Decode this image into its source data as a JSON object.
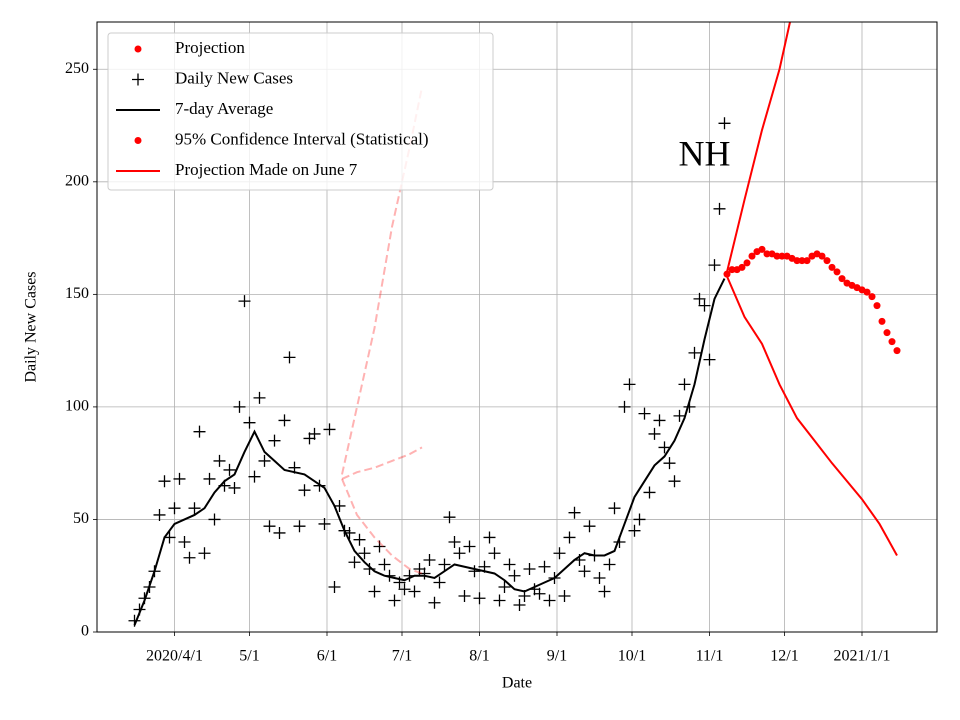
{
  "chart_data": {
    "type": "line",
    "xlabel": "Date",
    "ylabel": "Daily New Cases",
    "xlim": [
      "2020-03-01",
      "2021-01-31"
    ],
    "ylim": [
      0,
      271
    ],
    "xticks": [
      {
        "value": "2020-04-01",
        "label": "2020/4/1"
      },
      {
        "value": "2020-05-01",
        "label": "5/1"
      },
      {
        "value": "2020-06-01",
        "label": "6/1"
      },
      {
        "value": "2020-07-01",
        "label": "7/1"
      },
      {
        "value": "2020-08-01",
        "label": "8/1"
      },
      {
        "value": "2020-09-01",
        "label": "9/1"
      },
      {
        "value": "2020-10-01",
        "label": "10/1"
      },
      {
        "value": "2020-11-01",
        "label": "11/1"
      },
      {
        "value": "2020-12-01",
        "label": "12/1"
      },
      {
        "value": "2021-01-01",
        "label": "2021/1/1"
      }
    ],
    "yticks": [
      0,
      50,
      100,
      150,
      200,
      250
    ],
    "grid": true,
    "legend": "upper left",
    "annotations": [
      {
        "text": "NH",
        "x": "2020-10-30",
        "y": 211
      }
    ],
    "series": [
      {
        "name": "Projection",
        "color": "#ff0000",
        "marker": "dot",
        "x": [
          "2020-11-08",
          "2020-11-10",
          "2020-11-12",
          "2020-11-14",
          "2020-11-16",
          "2020-11-18",
          "2020-11-20",
          "2020-11-22",
          "2020-11-24",
          "2020-11-26",
          "2020-11-28",
          "2020-11-30",
          "2020-12-02",
          "2020-12-04",
          "2020-12-06",
          "2020-12-08",
          "2020-12-10",
          "2020-12-12",
          "2020-12-14",
          "2020-12-16",
          "2020-12-18",
          "2020-12-20",
          "2020-12-22",
          "2020-12-24",
          "2020-12-26",
          "2020-12-28",
          "2020-12-30",
          "2021-01-01",
          "2021-01-03",
          "2021-01-05",
          "2021-01-07",
          "2021-01-09",
          "2021-01-11",
          "2021-01-13",
          "2021-01-15"
        ],
        "values": [
          159,
          161,
          161,
          162,
          164,
          167,
          169,
          170,
          168,
          168,
          167,
          167,
          167,
          166,
          165,
          165,
          165,
          167,
          168,
          167,
          165,
          162,
          160,
          157,
          155,
          154,
          153,
          152,
          151,
          149,
          145,
          138,
          133,
          129,
          125
        ]
      },
      {
        "name": "Daily New Cases",
        "color": "#000000",
        "marker": "plus",
        "x": [
          "2020-03-16",
          "2020-03-18",
          "2020-03-20",
          "2020-03-22",
          "2020-03-24",
          "2020-03-26",
          "2020-03-28",
          "2020-03-30",
          "2020-04-01",
          "2020-04-03",
          "2020-04-05",
          "2020-04-07",
          "2020-04-09",
          "2020-04-11",
          "2020-04-13",
          "2020-04-15",
          "2020-04-17",
          "2020-04-19",
          "2020-04-21",
          "2020-04-23",
          "2020-04-25",
          "2020-04-27",
          "2020-04-29",
          "2020-05-01",
          "2020-05-03",
          "2020-05-05",
          "2020-05-07",
          "2020-05-09",
          "2020-05-11",
          "2020-05-13",
          "2020-05-15",
          "2020-05-17",
          "2020-05-19",
          "2020-05-21",
          "2020-05-23",
          "2020-05-25",
          "2020-05-27",
          "2020-05-29",
          "2020-05-31",
          "2020-06-02",
          "2020-06-04",
          "2020-06-06",
          "2020-06-08",
          "2020-06-10",
          "2020-06-12",
          "2020-06-14",
          "2020-06-16",
          "2020-06-18",
          "2020-06-20",
          "2020-06-22",
          "2020-06-24",
          "2020-06-26",
          "2020-06-28",
          "2020-06-30",
          "2020-07-02",
          "2020-07-04",
          "2020-07-06",
          "2020-07-08",
          "2020-07-10",
          "2020-07-12",
          "2020-07-14",
          "2020-07-16",
          "2020-07-18",
          "2020-07-20",
          "2020-07-22",
          "2020-07-24",
          "2020-07-26",
          "2020-07-28",
          "2020-07-30",
          "2020-08-01",
          "2020-08-03",
          "2020-08-05",
          "2020-08-07",
          "2020-08-09",
          "2020-08-11",
          "2020-08-13",
          "2020-08-15",
          "2020-08-17",
          "2020-08-19",
          "2020-08-21",
          "2020-08-23",
          "2020-08-25",
          "2020-08-27",
          "2020-08-29",
          "2020-08-31",
          "2020-09-02",
          "2020-09-04",
          "2020-09-06",
          "2020-09-08",
          "2020-09-10",
          "2020-09-12",
          "2020-09-14",
          "2020-09-16",
          "2020-09-18",
          "2020-09-20",
          "2020-09-22",
          "2020-09-24",
          "2020-09-26",
          "2020-09-28",
          "2020-09-30",
          "2020-10-02",
          "2020-10-04",
          "2020-10-06",
          "2020-10-08",
          "2020-10-10",
          "2020-10-12",
          "2020-10-14",
          "2020-10-16",
          "2020-10-18",
          "2020-10-20",
          "2020-10-22",
          "2020-10-24",
          "2020-10-26",
          "2020-10-28",
          "2020-10-30",
          "2020-11-01",
          "2020-11-03",
          "2020-11-05",
          "2020-11-07"
        ],
        "values": [
          5,
          10,
          15,
          20,
          27,
          52,
          67,
          42,
          55,
          68,
          40,
          33,
          55,
          89,
          35,
          68,
          50,
          76,
          65,
          72,
          64,
          100,
          147,
          93,
          69,
          104,
          76,
          47,
          85,
          44,
          94,
          122,
          73,
          47,
          63,
          86,
          88,
          65,
          48,
          90,
          20,
          56,
          45,
          44,
          31,
          41,
          35,
          28,
          18,
          38,
          30,
          25,
          14,
          22,
          19,
          25,
          18,
          28,
          26,
          32,
          13,
          22,
          30,
          51,
          40,
          35,
          16,
          38,
          27,
          15,
          29,
          42,
          35,
          14,
          20,
          30,
          25,
          12,
          16,
          28,
          19,
          17,
          29,
          14,
          24,
          35,
          16,
          42,
          53,
          32,
          27,
          47,
          34,
          24,
          18,
          30,
          55,
          40,
          100,
          110,
          45,
          50,
          97,
          62,
          88,
          94,
          82,
          75,
          67,
          96,
          110,
          100,
          124,
          148,
          145,
          121,
          163,
          188,
          226
        ]
      },
      {
        "name": "7-day Average",
        "color": "#000000",
        "marker": "line",
        "x": [
          "2020-03-16",
          "2020-03-20",
          "2020-03-24",
          "2020-03-28",
          "2020-04-01",
          "2020-04-05",
          "2020-04-09",
          "2020-04-13",
          "2020-04-17",
          "2020-04-21",
          "2020-04-25",
          "2020-04-29",
          "2020-05-03",
          "2020-05-07",
          "2020-05-11",
          "2020-05-15",
          "2020-05-19",
          "2020-05-23",
          "2020-05-27",
          "2020-05-31",
          "2020-06-04",
          "2020-06-08",
          "2020-06-12",
          "2020-06-16",
          "2020-06-20",
          "2020-06-24",
          "2020-06-28",
          "2020-07-02",
          "2020-07-06",
          "2020-07-10",
          "2020-07-14",
          "2020-07-18",
          "2020-07-22",
          "2020-07-26",
          "2020-07-30",
          "2020-08-03",
          "2020-08-07",
          "2020-08-11",
          "2020-08-15",
          "2020-08-19",
          "2020-08-23",
          "2020-08-27",
          "2020-08-31",
          "2020-09-04",
          "2020-09-08",
          "2020-09-12",
          "2020-09-16",
          "2020-09-20",
          "2020-09-24",
          "2020-09-28",
          "2020-10-02",
          "2020-10-06",
          "2020-10-10",
          "2020-10-14",
          "2020-10-18",
          "2020-10-22",
          "2020-10-26",
          "2020-10-30",
          "2020-11-03",
          "2020-11-07"
        ],
        "values": [
          3,
          14,
          27,
          42,
          48,
          50,
          52,
          55,
          62,
          67,
          70,
          80,
          89,
          80,
          76,
          72,
          71,
          70,
          67,
          64,
          56,
          45,
          36,
          31,
          27,
          25,
          24,
          23,
          25,
          25,
          24,
          27,
          30,
          29,
          28,
          27,
          26,
          23,
          19,
          18,
          20,
          22,
          24,
          28,
          32,
          35,
          34,
          34,
          36,
          48,
          60,
          67,
          74,
          78,
          85,
          95,
          110,
          130,
          148,
          157
        ]
      },
      {
        "name": "95% Confidence Interval (Statistical)",
        "color": "#ff0000",
        "marker": "dot",
        "x": [
          "2020-11-08",
          "2020-11-15",
          "2020-11-22",
          "2020-11-29",
          "2020-12-06",
          "2020-12-13",
          "2020-12-20",
          "2021-01-01",
          "2021-01-08",
          "2021-01-15"
        ],
        "lower": [
          158,
          140,
          128,
          110,
          95,
          85,
          75,
          59,
          48,
          34
        ],
        "upper": [
          160,
          192,
          223,
          250,
          285,
          null,
          null,
          null,
          null,
          null
        ]
      },
      {
        "name": "Projection Made on June 7",
        "color": "#ff0000",
        "marker": "line",
        "alpha": 0.3,
        "dash": true,
        "x": [
          "2020-06-07",
          "2020-06-13",
          "2020-06-20",
          "2020-06-27",
          "2020-07-04",
          "2020-07-09"
        ],
        "values": [
          68,
          71,
          73,
          76,
          79,
          82
        ],
        "lower": [
          68,
          52,
          42,
          34,
          28,
          26
        ],
        "upper": [
          70,
          100,
          135,
          180,
          215,
          242
        ]
      }
    ]
  }
}
